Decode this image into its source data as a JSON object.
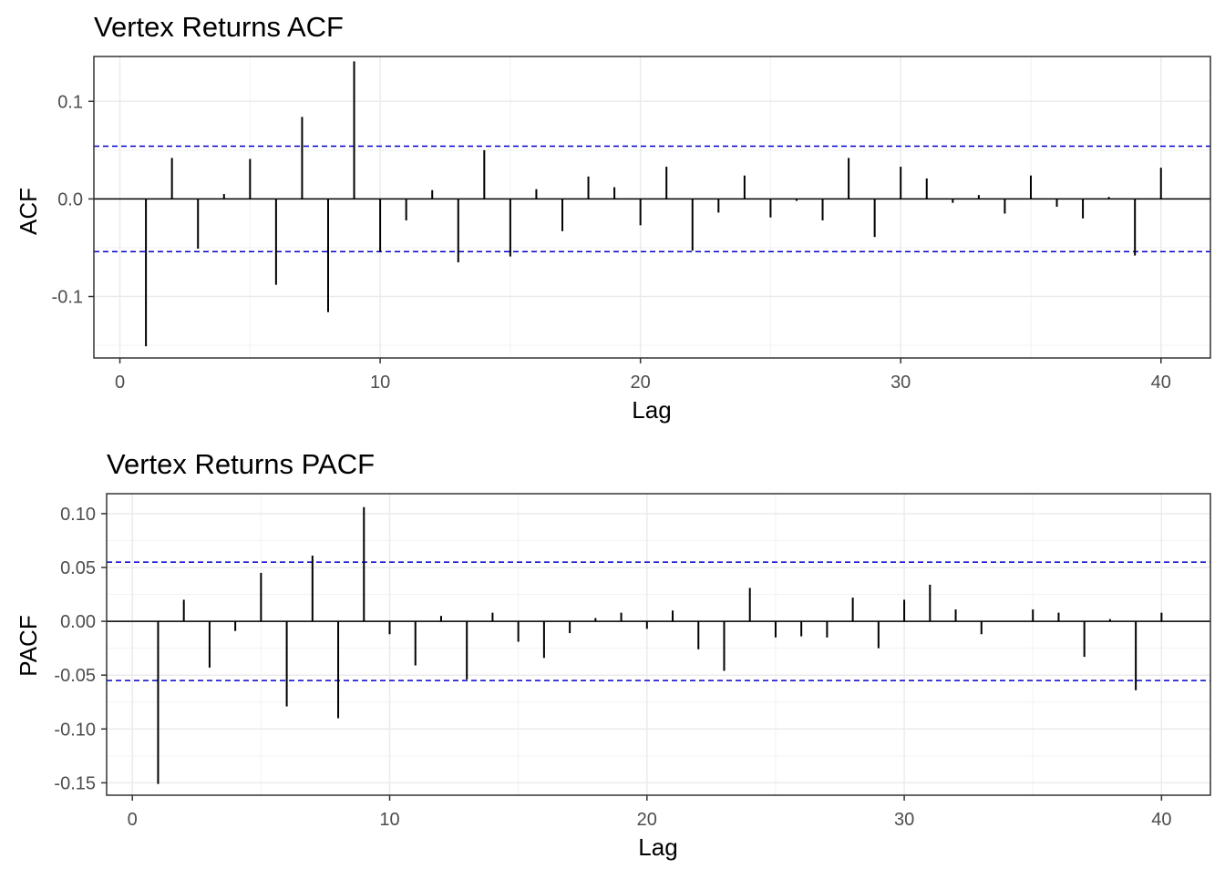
{
  "chart_data": [
    {
      "type": "bar",
      "title": "Vertex Returns ACF",
      "xlabel": "Lag",
      "ylabel": "ACF",
      "xlim": [
        -1,
        41.9
      ],
      "ylim": [
        -0.163,
        0.146
      ],
      "xticks": [
        0,
        10,
        20,
        30,
        40
      ],
      "xtick_labels": [
        "0",
        "10",
        "20",
        "30",
        "40"
      ],
      "yticks": [
        -0.1,
        0.0,
        0.1
      ],
      "ytick_labels": [
        "-0.1",
        "0.0",
        "0.1"
      ],
      "grid": true,
      "confidence_bounds": [
        0.054,
        -0.054
      ],
      "confidence_color": "#0000cc",
      "lags": [
        1,
        2,
        3,
        4,
        5,
        6,
        7,
        8,
        9,
        10,
        11,
        12,
        13,
        14,
        15,
        16,
        17,
        18,
        19,
        20,
        21,
        22,
        23,
        24,
        25,
        26,
        27,
        28,
        29,
        30,
        31,
        32,
        33,
        34,
        35,
        36,
        37,
        38,
        39,
        40
      ],
      "values": [
        -0.151,
        0.042,
        -0.051,
        0.005,
        0.041,
        -0.088,
        0.084,
        -0.116,
        0.141,
        -0.054,
        -0.022,
        0.009,
        -0.065,
        0.05,
        -0.059,
        0.01,
        -0.033,
        0.023,
        0.012,
        -0.027,
        0.033,
        -0.053,
        -0.014,
        0.024,
        -0.019,
        -0.002,
        -0.022,
        0.042,
        -0.039,
        0.033,
        0.021,
        -0.004,
        0.004,
        -0.015,
        0.024,
        -0.008,
        -0.02,
        0.002,
        -0.058,
        0.032
      ]
    },
    {
      "type": "bar",
      "title": "Vertex Returns PACF",
      "xlabel": "Lag",
      "ylabel": "PACF",
      "xlim": [
        -1,
        41.9
      ],
      "ylim": [
        -0.1615,
        0.1185
      ],
      "xticks": [
        0,
        10,
        20,
        30,
        40
      ],
      "xtick_labels": [
        "0",
        "10",
        "20",
        "30",
        "40"
      ],
      "yticks": [
        -0.15,
        -0.1,
        -0.05,
        0.0,
        0.05,
        0.1
      ],
      "ytick_labels": [
        "-0.15",
        "-0.10",
        "-0.05",
        "0.00",
        "0.05",
        "0.10"
      ],
      "grid": true,
      "confidence_bounds": [
        0.055,
        -0.055
      ],
      "confidence_color": "#0000cc",
      "lags": [
        1,
        2,
        3,
        4,
        5,
        6,
        7,
        8,
        9,
        10,
        11,
        12,
        13,
        14,
        15,
        16,
        17,
        18,
        19,
        20,
        21,
        22,
        23,
        24,
        25,
        26,
        27,
        28,
        29,
        30,
        31,
        32,
        33,
        34,
        35,
        36,
        37,
        38,
        39,
        40
      ],
      "values": [
        -0.151,
        0.02,
        -0.043,
        -0.009,
        0.045,
        -0.079,
        0.061,
        -0.09,
        0.106,
        -0.012,
        -0.041,
        0.005,
        -0.054,
        0.008,
        -0.019,
        -0.034,
        -0.011,
        0.003,
        0.008,
        -0.007,
        0.01,
        -0.026,
        -0.046,
        0.031,
        -0.015,
        -0.014,
        -0.015,
        0.022,
        -0.025,
        0.02,
        0.034,
        0.011,
        -0.012,
        0.0,
        0.011,
        0.008,
        -0.033,
        0.002,
        -0.064,
        0.008
      ]
    }
  ]
}
